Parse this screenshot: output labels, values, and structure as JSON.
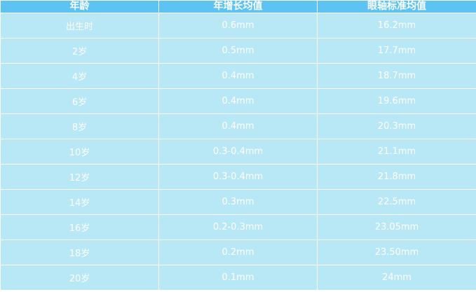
{
  "table": {
    "header": [
      "年龄",
      "年增长均值",
      "眼轴标准均值"
    ],
    "rows": [
      [
        "出生时",
        "0.6mm",
        "16.2mm"
      ],
      [
        "2岁",
        "0.5mm",
        "17.7mm"
      ],
      [
        "4岁",
        "0.4mm",
        "18.7mm"
      ],
      [
        "6岁",
        "0.4mm",
        "19.6mm"
      ],
      [
        "8岁",
        "0.4mm",
        "20.3mm"
      ],
      [
        "10岁",
        "0.3-0.4mm",
        "21.1mm"
      ],
      [
        "12岁",
        "0.3-0.4mm",
        "21.8mm"
      ],
      [
        "14岁",
        "0.3mm",
        "22.5mm"
      ],
      [
        "16岁",
        "0.2-0.3mm",
        "23.05mm"
      ],
      [
        "18岁",
        "0.2mm",
        "23.50mm"
      ],
      [
        "20岁",
        "0.1mm",
        "24mm"
      ]
    ]
  }
}
